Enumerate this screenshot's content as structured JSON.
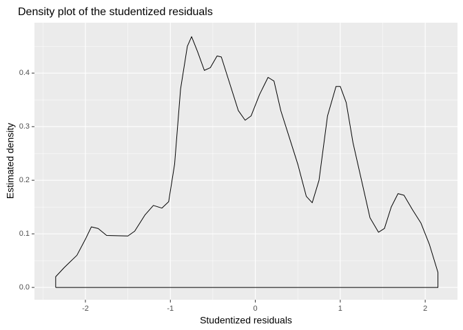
{
  "chart_data": {
    "type": "line",
    "title": "Density plot of the studentized residuals",
    "xlabel": "Studentized residuals",
    "ylabel": "Estimated density",
    "x": [
      -2.35,
      -2.35,
      -2.25,
      -2.1,
      -2.0,
      -1.93,
      -1.85,
      -1.75,
      -1.5,
      -1.42,
      -1.3,
      -1.2,
      -1.1,
      -1.02,
      -0.95,
      -0.88,
      -0.8,
      -0.75,
      -0.68,
      -0.6,
      -0.53,
      -0.45,
      -0.4,
      -0.3,
      -0.2,
      -0.12,
      -0.05,
      0.05,
      0.15,
      0.22,
      0.3,
      0.4,
      0.5,
      0.6,
      0.67,
      0.75,
      0.85,
      0.95,
      1.0,
      1.07,
      1.15,
      1.25,
      1.35,
      1.45,
      1.52,
      1.6,
      1.68,
      1.75,
      1.85,
      1.95,
      2.05,
      2.15,
      2.15,
      -2.35
    ],
    "series": [
      {
        "name": "density",
        "color": "#000000",
        "values": [
          0,
          0.02,
          0.037,
          0.06,
          0.09,
          0.113,
          0.11,
          0.097,
          0.096,
          0.105,
          0.135,
          0.153,
          0.148,
          0.16,
          0.23,
          0.37,
          0.45,
          0.468,
          0.44,
          0.405,
          0.41,
          0.432,
          0.43,
          0.38,
          0.33,
          0.312,
          0.32,
          0.36,
          0.392,
          0.385,
          0.33,
          0.28,
          0.23,
          0.17,
          0.158,
          0.2,
          0.32,
          0.375,
          0.375,
          0.345,
          0.27,
          0.2,
          0.13,
          0.103,
          0.11,
          0.15,
          0.175,
          0.172,
          0.145,
          0.12,
          0.08,
          0.028,
          0,
          0
        ]
      }
    ],
    "xlim": [
      -2.6,
      2.38
    ],
    "ylim": [
      -0.023,
      0.494
    ],
    "xticks": [
      -2,
      -1,
      0,
      1,
      2
    ],
    "yticks": [
      {
        "value": 0,
        "label": "0.0"
      },
      0.1,
      0.2,
      0.3,
      0.4
    ],
    "xminor": [
      -2.5,
      -1.5,
      -0.5,
      0.5,
      1.5
    ],
    "yminor": [
      0.05,
      0.15,
      0.25,
      0.35,
      0.45
    ],
    "grid": true,
    "panel_color": "#ebebeb"
  }
}
